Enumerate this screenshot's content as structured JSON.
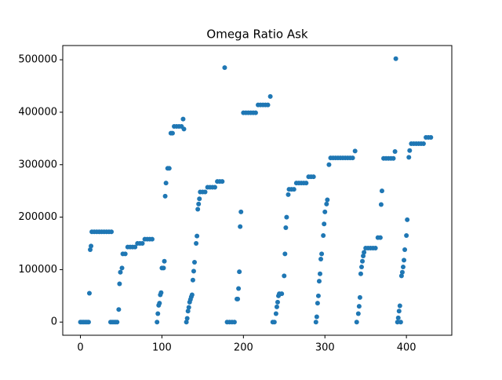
{
  "chart_data": {
    "type": "scatter",
    "title": "Omega Ratio Ask",
    "color": "#1f77b4",
    "x": [
      0,
      2,
      4,
      6,
      8,
      10,
      11,
      12,
      13,
      14,
      17,
      20,
      23,
      26,
      29,
      32,
      35,
      38,
      37,
      39,
      41,
      43,
      45,
      47,
      48,
      49,
      51,
      52,
      55,
      58,
      61,
      64,
      67,
      70,
      73,
      76,
      79,
      82,
      85,
      88,
      94,
      95,
      96,
      97,
      98,
      99,
      100,
      102,
      103,
      104,
      105,
      107,
      109,
      111,
      113,
      115,
      118,
      121,
      124,
      126,
      127,
      130,
      131,
      132,
      133,
      134,
      135,
      136,
      137,
      138,
      139,
      140,
      142,
      143,
      144,
      145,
      146,
      147,
      150,
      153,
      156,
      159,
      162,
      165,
      168,
      171,
      174,
      177,
      180,
      183,
      186,
      189,
      192,
      193,
      194,
      195,
      196,
      197,
      200,
      203,
      206,
      209,
      212,
      215,
      218,
      221,
      224,
      227,
      230,
      233,
      236,
      238,
      240,
      241,
      242,
      243,
      244,
      247,
      250,
      251,
      252,
      253,
      255,
      256,
      259,
      262,
      265,
      268,
      271,
      274,
      277,
      280,
      283,
      286,
      289,
      290,
      291,
      292,
      293,
      294,
      295,
      296,
      298,
      299,
      300,
      302,
      303,
      305,
      307,
      310,
      313,
      316,
      319,
      322,
      325,
      328,
      331,
      334,
      337,
      339,
      341,
      342,
      343,
      344,
      345,
      346,
      347,
      348,
      350,
      353,
      356,
      359,
      362,
      365,
      368,
      369,
      370,
      372,
      375,
      378,
      381,
      384,
      386,
      387,
      389,
      390,
      391,
      392,
      393,
      394,
      395,
      396,
      397,
      398,
      400,
      401,
      403,
      404,
      406,
      409,
      412,
      415,
      418,
      421,
      424,
      427,
      430
    ],
    "values": [
      0,
      0,
      0,
      0,
      0,
      0,
      55000,
      138000,
      145000,
      172000,
      172000,
      172000,
      172000,
      172000,
      172000,
      172000,
      172000,
      172000,
      0,
      0,
      0,
      0,
      0,
      24000,
      73000,
      95000,
      103000,
      130000,
      130000,
      143000,
      143000,
      143000,
      143000,
      150000,
      150000,
      150000,
      158000,
      158000,
      158000,
      158000,
      0,
      16000,
      32000,
      36000,
      52000,
      56000,
      103000,
      103000,
      116000,
      240000,
      265000,
      293000,
      293000,
      360000,
      360000,
      373000,
      373000,
      373000,
      373000,
      387000,
      368000,
      0,
      7000,
      21000,
      28000,
      38000,
      43000,
      48000,
      52000,
      80000,
      97000,
      114000,
      150000,
      164000,
      215000,
      225000,
      235000,
      248000,
      248000,
      248000,
      257000,
      257000,
      257000,
      257000,
      268000,
      268000,
      268000,
      485000,
      0,
      0,
      0,
      0,
      44000,
      44000,
      64000,
      96000,
      182000,
      210000,
      399000,
      399000,
      399000,
      399000,
      399000,
      399000,
      414000,
      414000,
      414000,
      414000,
      414000,
      430000,
      0,
      0,
      16000,
      29000,
      38000,
      50000,
      54000,
      54000,
      88000,
      130000,
      180000,
      200000,
      243000,
      253000,
      253000,
      253000,
      265000,
      265000,
      265000,
      265000,
      265000,
      277000,
      277000,
      277000,
      0,
      10000,
      36000,
      50000,
      78000,
      92000,
      120000,
      130000,
      165000,
      187000,
      210000,
      225000,
      233000,
      300000,
      313000,
      313000,
      313000,
      313000,
      313000,
      313000,
      313000,
      313000,
      313000,
      313000,
      326000,
      0,
      16000,
      30000,
      47000,
      92000,
      105000,
      116000,
      126000,
      133000,
      141000,
      141000,
      141000,
      141000,
      141000,
      161000,
      161000,
      224000,
      250000,
      312000,
      312000,
      312000,
      312000,
      312000,
      325000,
      502000,
      0,
      8000,
      21000,
      31000,
      0,
      88000,
      95000,
      105000,
      118000,
      138000,
      165000,
      195000,
      314000,
      327000,
      340000,
      340000,
      340000,
      340000,
      340000,
      340000,
      352000,
      352000,
      352000
    ],
    "xlim": [
      -21.7,
      455.7
    ],
    "xticks": [
      0,
      100,
      200,
      300,
      400
    ],
    "ylim": [
      -25100,
      527100
    ],
    "yticks": [
      0,
      100000,
      200000,
      300000,
      400000,
      500000
    ]
  }
}
